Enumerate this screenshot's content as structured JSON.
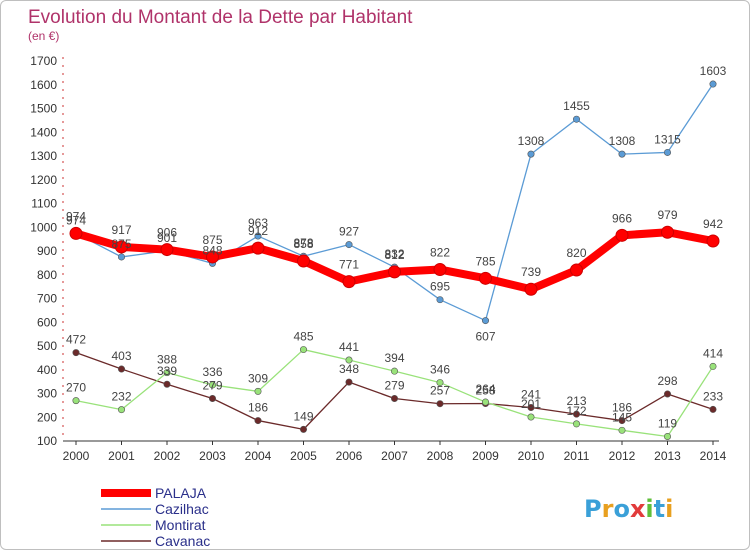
{
  "chart_data": {
    "type": "line",
    "title": "Evolution du Montant de la Dette par Habitant",
    "subtitle": "(en €)",
    "x": [
      "2000",
      "2001",
      "2002",
      "2003",
      "2004",
      "2005",
      "2006",
      "2007",
      "2008",
      "2009",
      "2010",
      "2011",
      "2012",
      "2013",
      "2014"
    ],
    "ylim": [
      100,
      1700
    ],
    "yticks": [
      100,
      200,
      300,
      400,
      500,
      600,
      700,
      800,
      900,
      1000,
      1100,
      1200,
      1300,
      1400,
      1500,
      1600,
      1700
    ],
    "grid": false,
    "legend_position": "bottom-left",
    "series": [
      {
        "name": "PALAJA",
        "color": "#ff0000",
        "values": [
          974,
          917,
          906,
          875,
          912,
          858,
          771,
          812,
          822,
          785,
          739,
          820,
          966,
          979,
          942
        ]
      },
      {
        "name": "Cazilhac",
        "color": "#5b9bd5",
        "values": [
          974,
          875,
          901,
          848,
          963,
          878,
          927,
          832,
          695,
          607,
          1308,
          1455,
          1308,
          1315,
          1603
        ]
      },
      {
        "name": "Montirat",
        "color": "#99e27a",
        "values": [
          270,
          232,
          388,
          336,
          309,
          485,
          441,
          394,
          346,
          264,
          201,
          172,
          145,
          119,
          414
        ]
      },
      {
        "name": "Cavanac",
        "color": "#6b2a2a",
        "values": [
          472,
          403,
          339,
          279,
          186,
          149,
          348,
          279,
          257,
          258,
          241,
          213,
          186,
          298,
          233
        ]
      }
    ]
  },
  "logo": {
    "text": "Proxiti",
    "letters": [
      "P",
      "r",
      "o",
      "x",
      "i",
      "t",
      "i"
    ],
    "colors": [
      "#3aa0d8",
      "#e8a020",
      "#3aa0d8",
      "#e23b3b",
      "#5fbf3a",
      "#3aa0d8",
      "#e8a020"
    ]
  }
}
